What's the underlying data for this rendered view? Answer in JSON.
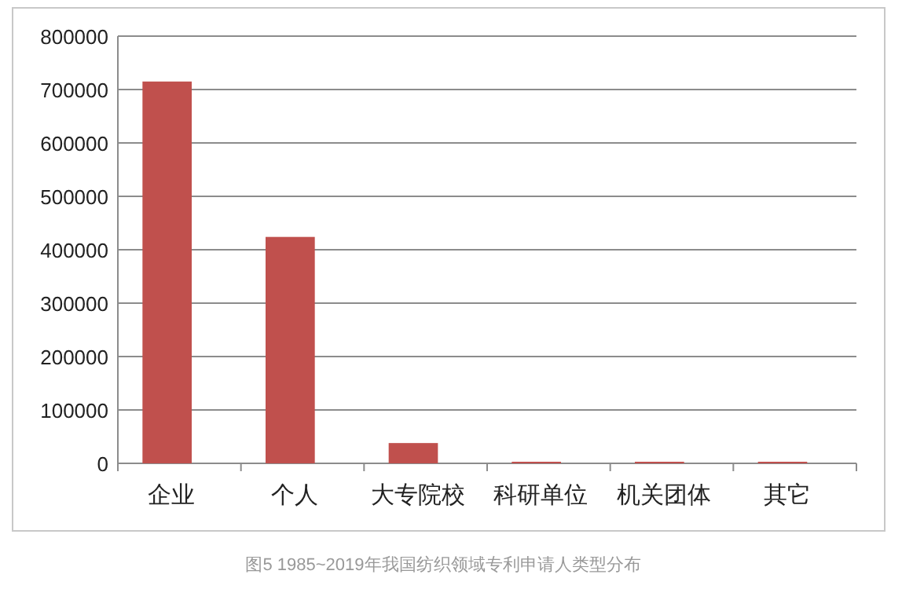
{
  "chart_data": {
    "type": "bar",
    "categories": [
      "企业",
      "个人",
      "大专院校",
      "科研单位",
      "机关团体",
      "其它"
    ],
    "values": [
      715000,
      424000,
      38000,
      3000,
      3000,
      3000
    ],
    "color": "#c0504d",
    "ylim": [
      0,
      800000
    ],
    "yticks": [
      0,
      100000,
      200000,
      300000,
      400000,
      500000,
      600000,
      700000,
      800000
    ],
    "grid": "y",
    "annotations": [
      "图5 1985~2019年我国纺织领域专利申请人类型分布"
    ]
  }
}
